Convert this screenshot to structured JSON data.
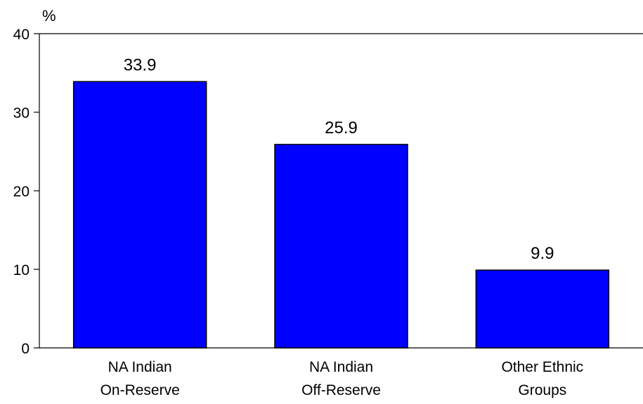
{
  "chart_data": {
    "type": "bar",
    "title": "",
    "xlabel": "",
    "ylabel": "%",
    "ylim": [
      0,
      40
    ],
    "yticks": [
      "0",
      "10",
      "20",
      "30",
      "40"
    ],
    "grid": false,
    "categories": [
      [
        "NA Indian",
        "On-Reserve"
      ],
      [
        "NA Indian",
        "Off-Reserve"
      ],
      [
        "Other Ethnic",
        "Groups"
      ]
    ],
    "values": [
      33.9,
      25.9,
      9.9
    ],
    "value_labels": [
      "33.9",
      "25.9",
      "9.9"
    ],
    "colors": {
      "bar_fill": "#0000ff",
      "bar_stroke": "#000000",
      "axis": "#000000"
    }
  }
}
